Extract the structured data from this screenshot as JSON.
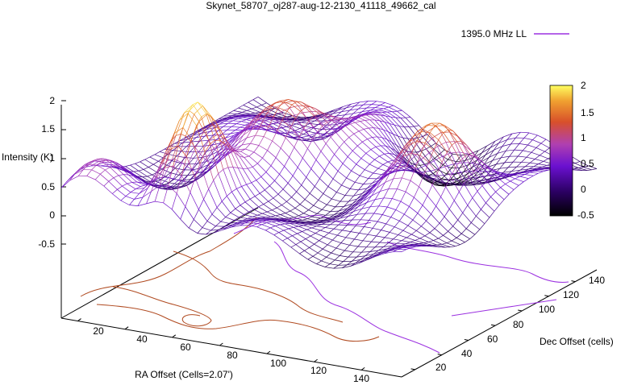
{
  "chart_data": {
    "type": "surface3d",
    "title": "Skynet_58707_oj287-aug-12-2130_41118_49662_cal",
    "zlabel": "Intensity (K)",
    "xlabel": "RA Offset (Cells=2.07')",
    "ylabel": "Dec Offset (cells)",
    "legend": {
      "label": "1395.0 MHz LL",
      "position": "top-right",
      "color": "#9b30e0"
    },
    "x_ticks": [
      "20",
      "40",
      "60",
      "80",
      "100",
      "120",
      "140"
    ],
    "y_ticks": [
      "20",
      "40",
      "60",
      "80",
      "100",
      "120",
      "140"
    ],
    "z_ticks": [
      "2",
      "1.5",
      "1",
      "0.5",
      "0",
      "-0.5"
    ],
    "zlim": [
      -0.5,
      2
    ],
    "colorbar": {
      "ticks": [
        "2",
        "1.5",
        "1",
        "0.5",
        "0",
        "-0.5"
      ],
      "range": [
        -0.5,
        2
      ],
      "colors": [
        "#000000",
        "#5a00b4",
        "#9b30e0",
        "#c8504a",
        "#e8902a",
        "#f5c84a",
        "#ffff60"
      ]
    },
    "series": [
      {
        "name": "1395.0 MHz LL",
        "style": "surface mesh with contour projection on base"
      }
    ]
  }
}
